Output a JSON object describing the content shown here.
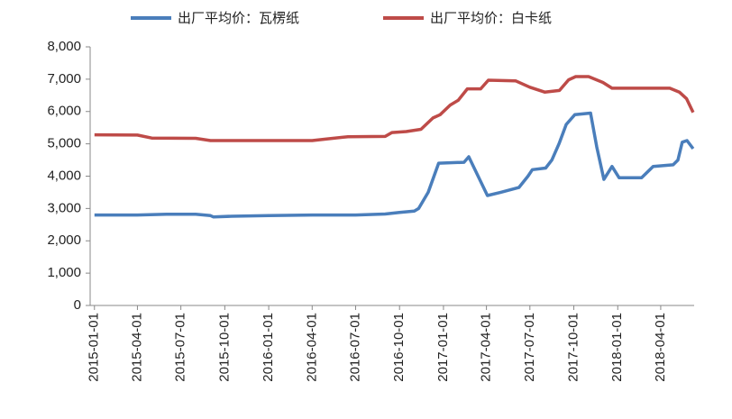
{
  "chart_data": {
    "type": "line",
    "series": [
      {
        "name": "出厂平均价：瓦楞纸",
        "color": "#4a7ebb",
        "x": [
          "2015-01-01",
          "2015-04-01",
          "2015-06-01",
          "2015-08-01",
          "2015-09-01",
          "2015-09-07",
          "2015-10-15",
          "2016-01-01",
          "2016-04-01",
          "2016-07-01",
          "2016-09-01",
          "2016-10-01",
          "2016-11-01",
          "2016-11-10",
          "2016-11-30",
          "2016-12-22",
          "2017-02-13",
          "2017-02-23",
          "2017-04-03",
          "2017-05-01",
          "2017-06-08",
          "2017-06-27",
          "2017-07-06",
          "2017-08-03",
          "2017-08-16",
          "2017-08-31",
          "2017-09-15",
          "2017-10-03",
          "2017-11-05",
          "2017-11-18",
          "2017-12-03",
          "2017-12-20",
          "2018-01-04",
          "2018-02-20",
          "2018-03-16",
          "2018-04-27",
          "2018-05-07",
          "2018-05-16",
          "2018-05-26",
          "2018-06-08"
        ],
        "values": [
          2800,
          2800,
          2820,
          2820,
          2780,
          2740,
          2760,
          2780,
          2800,
          2800,
          2830,
          2880,
          2920,
          3000,
          3500,
          4400,
          4430,
          4600,
          3400,
          3500,
          3650,
          4000,
          4200,
          4250,
          4500,
          5000,
          5600,
          5900,
          5950,
          4900,
          3900,
          4300,
          3950,
          3950,
          4300,
          4350,
          4500,
          5050,
          5100,
          4850
        ]
      },
      {
        "name": "出厂平均价：白卡纸",
        "color": "#be4b48",
        "x": [
          "2015-01-01",
          "2015-04-01",
          "2015-05-01",
          "2015-08-01",
          "2015-09-01",
          "2016-01-01",
          "2016-04-01",
          "2016-05-01",
          "2016-06-15",
          "2016-09-01",
          "2016-09-15",
          "2016-10-15",
          "2016-11-15",
          "2016-12-10",
          "2016-12-25",
          "2017-01-15",
          "2017-02-01",
          "2017-02-20",
          "2017-03-20",
          "2017-04-05",
          "2017-06-01",
          "2017-07-01",
          "2017-08-01",
          "2017-09-01",
          "2017-09-20",
          "2017-10-05",
          "2017-11-01",
          "2017-12-01",
          "2017-12-20",
          "2018-04-20",
          "2018-05-10",
          "2018-05-25",
          "2018-06-08"
        ],
        "values": [
          5280,
          5270,
          5180,
          5170,
          5100,
          5100,
          5100,
          5150,
          5220,
          5230,
          5350,
          5380,
          5450,
          5800,
          5900,
          6200,
          6350,
          6700,
          6700,
          6970,
          6950,
          6750,
          6600,
          6650,
          6980,
          7080,
          7080,
          6900,
          6720,
          6720,
          6600,
          6400,
          5970
        ]
      }
    ],
    "xlim": [
      "2014-12-23",
      "2018-06-10"
    ],
    "xticks": [
      "2015-01-01",
      "2015-04-01",
      "2015-07-01",
      "2015-10-01",
      "2016-01-01",
      "2016-04-01",
      "2016-07-01",
      "2016-10-01",
      "2017-01-01",
      "2017-04-01",
      "2017-07-01",
      "2017-10-01",
      "2018-01-01",
      "2018-04-01"
    ],
    "ylim": [
      0,
      8000
    ],
    "yticks": [
      0,
      {
        "value": 1000,
        "label": "1,000"
      },
      {
        "value": 2000,
        "label": "2,000"
      },
      {
        "value": 3000,
        "label": "3,000"
      },
      {
        "value": 4000,
        "label": "4,000"
      },
      {
        "value": 5000,
        "label": "5,000"
      },
      {
        "value": 6000,
        "label": "6,000"
      },
      {
        "value": 7000,
        "label": "7,000"
      },
      {
        "value": 8000,
        "label": "8,000"
      }
    ]
  }
}
